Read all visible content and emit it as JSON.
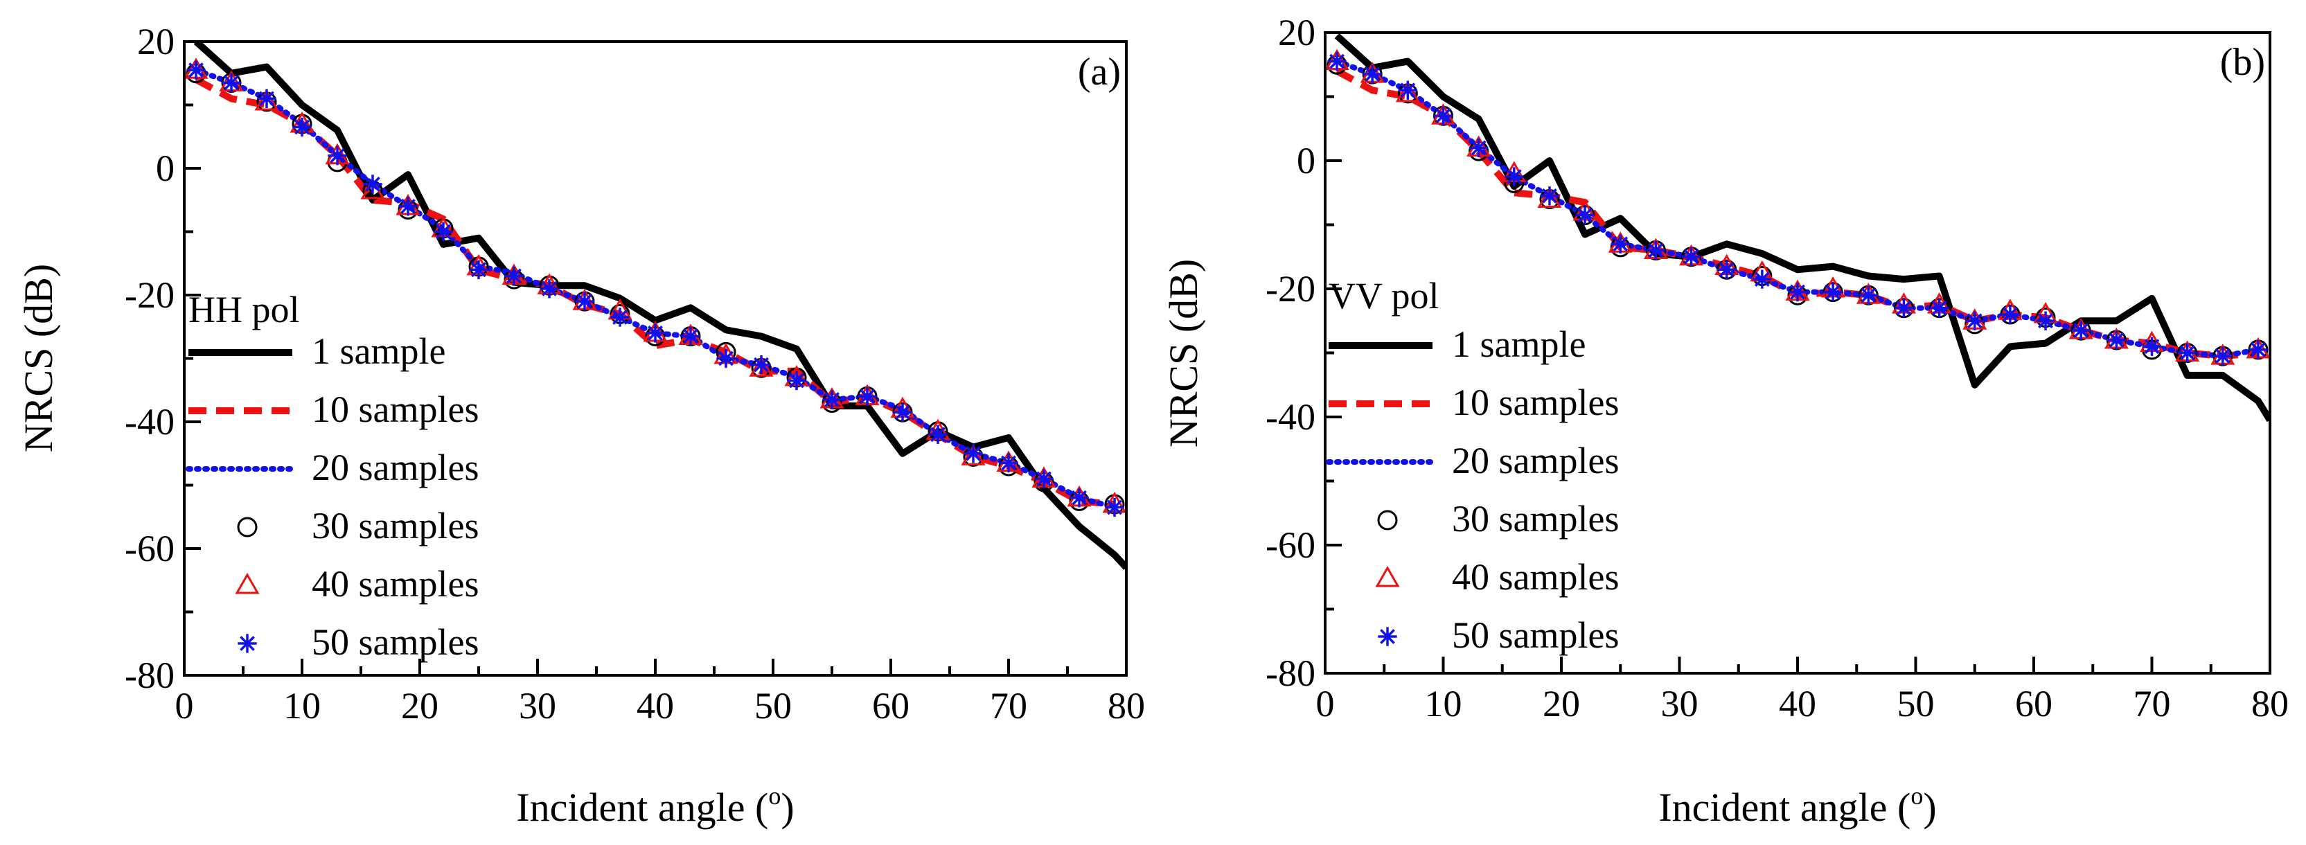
{
  "chart_data": [
    {
      "type": "line",
      "panel_label": "(a)",
      "polarization_label": "HH pol",
      "xlabel": "Incident angle (",
      "xlabel_sup": "o",
      "xlabel_close": ")",
      "ylabel": "NRCS (dB)",
      "xlim": [
        0,
        80
      ],
      "ylim": [
        -80,
        20
      ],
      "xticks": [
        0,
        10,
        20,
        30,
        40,
        50,
        60,
        70,
        80
      ],
      "yticks": [
        20,
        0,
        -20,
        -40,
        -60,
        -80
      ],
      "legend_position": "left-middle",
      "series": [
        {
          "name": "1 sample",
          "style": "solid",
          "color": "#000000",
          "x": [
            1,
            4,
            7,
            10,
            13,
            16,
            19,
            22,
            25,
            28,
            31,
            34,
            37,
            40,
            43,
            46,
            49,
            52,
            55,
            58,
            61,
            64,
            67,
            70,
            73,
            76,
            79,
            80
          ],
          "y": [
            20,
            15,
            16,
            10,
            6,
            -5,
            -1,
            -12,
            -11,
            -18,
            -18.5,
            -18.5,
            -20.5,
            -24,
            -22,
            -25.5,
            -26.5,
            -28.5,
            -37.5,
            -37.5,
            -45,
            -41.5,
            -44,
            -42.5,
            -50.5,
            -56.5,
            -61,
            -63
          ]
        },
        {
          "name": "10 samples",
          "style": "dashed",
          "color": "#ee1111",
          "x": [
            1,
            4,
            7,
            10,
            13,
            16,
            19,
            22,
            25,
            28,
            31,
            34,
            37,
            40,
            43,
            46,
            49,
            52,
            55,
            58,
            61,
            64,
            67,
            70,
            73,
            76,
            79
          ],
          "y": [
            14,
            11,
            10,
            7,
            2,
            -5,
            -5.5,
            -8,
            -16,
            -17.5,
            -18.5,
            -21.5,
            -23,
            -28,
            -27,
            -29,
            -32,
            -32,
            -37,
            -36,
            -38.5,
            -42,
            -45.5,
            -47,
            -49.5,
            -52.5,
            -53
          ]
        },
        {
          "name": "20 samples",
          "style": "dotted",
          "color": "#1111ee",
          "x": [
            1,
            4,
            7,
            10,
            13,
            16,
            19,
            22,
            25,
            28,
            31,
            34,
            37,
            40,
            43,
            46,
            49,
            52,
            55,
            58,
            61,
            64,
            67,
            70,
            73,
            76,
            79
          ],
          "y": [
            15.5,
            13.5,
            11,
            7,
            2,
            -2.5,
            -6,
            -9.5,
            -15.5,
            -16.5,
            -19,
            -21,
            -23.5,
            -26,
            -26.5,
            -30,
            -31,
            -33,
            -36.5,
            -36,
            -38,
            -42,
            -45,
            -46.5,
            -49,
            -52,
            -53.5
          ]
        },
        {
          "name": "30 samples",
          "style": "marker",
          "marker": "circle",
          "color": "#000000",
          "x": [
            1,
            4,
            7,
            10,
            13,
            16,
            19,
            22,
            25,
            28,
            31,
            34,
            37,
            40,
            43,
            46,
            49,
            52,
            55,
            58,
            61,
            64,
            67,
            70,
            73,
            76,
            79
          ],
          "y": [
            15,
            13.5,
            10.5,
            7,
            1,
            -3.5,
            -6.5,
            -9.5,
            -15.5,
            -17.5,
            -18.5,
            -21,
            -23,
            -26.5,
            -26.5,
            -29,
            -31.5,
            -33,
            -37,
            -36,
            -38.5,
            -41.5,
            -45.5,
            -47,
            -49.5,
            -52.5,
            -53
          ]
        },
        {
          "name": "40 samples",
          "style": "marker",
          "marker": "triangle",
          "color": "#ee1111",
          "x": [
            1,
            4,
            7,
            10,
            13,
            16,
            19,
            22,
            25,
            28,
            31,
            34,
            37,
            40,
            43,
            46,
            49,
            52,
            55,
            58,
            61,
            64,
            67,
            70,
            73,
            76,
            79
          ],
          "y": [
            15.5,
            13.5,
            10.5,
            7,
            2,
            -3.5,
            -6,
            -9.5,
            -15.5,
            -17,
            -18.5,
            -21,
            -22.5,
            -26,
            -26.5,
            -29.5,
            -31.5,
            -33,
            -36.5,
            -36,
            -38,
            -41.5,
            -45.5,
            -46.5,
            -49,
            -52,
            -53
          ]
        },
        {
          "name": "50 samples",
          "style": "marker",
          "marker": "asterisk",
          "color": "#1111ee",
          "x": [
            1,
            4,
            7,
            10,
            13,
            16,
            19,
            22,
            25,
            28,
            31,
            34,
            37,
            40,
            43,
            46,
            49,
            52,
            55,
            58,
            61,
            64,
            67,
            70,
            73,
            76,
            79
          ],
          "y": [
            15.5,
            13.5,
            11,
            6.5,
            2,
            -2.5,
            -6,
            -10,
            -16,
            -17,
            -19,
            -21,
            -23.5,
            -26,
            -26.5,
            -30,
            -31,
            -33.5,
            -36.5,
            -36,
            -38.5,
            -42,
            -45,
            -46.5,
            -49,
            -52,
            -53.5
          ]
        }
      ]
    },
    {
      "type": "line",
      "panel_label": "(b)",
      "polarization_label": "VV pol",
      "xlabel": "Incident angle (",
      "xlabel_sup": "o",
      "xlabel_close": ")",
      "ylabel": "NRCS (dB)",
      "xlim": [
        0,
        80
      ],
      "ylim": [
        -80,
        20
      ],
      "xticks": [
        0,
        10,
        20,
        30,
        40,
        50,
        60,
        70,
        80
      ],
      "yticks": [
        20,
        0,
        -20,
        -40,
        -60,
        -80
      ],
      "legend_position": "left-middle",
      "series": [
        {
          "name": "1 sample",
          "style": "solid",
          "color": "#000000",
          "x": [
            1,
            4,
            7,
            10,
            13,
            16,
            19,
            22,
            25,
            28,
            31,
            34,
            37,
            40,
            43,
            46,
            49,
            52,
            55,
            58,
            61,
            64,
            67,
            70,
            73,
            76,
            79,
            80
          ],
          "y": [
            19.5,
            14.5,
            15.5,
            10,
            6.5,
            -4,
            0,
            -11.5,
            -9,
            -14.5,
            -15,
            -13,
            -14.5,
            -17,
            -16.5,
            -18,
            -18.5,
            -18,
            -35,
            -29,
            -28.5,
            -25,
            -25,
            -21.5,
            -33.5,
            -33.5,
            -37.5,
            -40.5
          ]
        },
        {
          "name": "10 samples",
          "style": "dashed",
          "color": "#ee1111",
          "x": [
            1,
            4,
            7,
            10,
            13,
            16,
            19,
            22,
            25,
            28,
            31,
            34,
            37,
            40,
            43,
            46,
            49,
            52,
            55,
            58,
            61,
            64,
            67,
            70,
            73,
            76,
            79
          ],
          "y": [
            14,
            11,
            10,
            7,
            1.5,
            -5,
            -5.5,
            -6.5,
            -13.5,
            -14,
            -15,
            -16.5,
            -18,
            -21,
            -20.5,
            -21,
            -23,
            -22.5,
            -25,
            -24,
            -24.5,
            -26.5,
            -28,
            -28.5,
            -30,
            -30.5,
            -30
          ]
        },
        {
          "name": "20 samples",
          "style": "dotted",
          "color": "#1111ee",
          "x": [
            1,
            4,
            7,
            10,
            13,
            16,
            19,
            22,
            25,
            28,
            31,
            34,
            37,
            40,
            43,
            46,
            49,
            52,
            55,
            58,
            61,
            64,
            67,
            70,
            73,
            76,
            79
          ],
          "y": [
            15.5,
            13.5,
            11,
            7,
            2,
            -2.5,
            -5.5,
            -8.5,
            -13,
            -14,
            -15,
            -17,
            -18.5,
            -20.5,
            -20.5,
            -21,
            -23,
            -23,
            -25,
            -24,
            -25,
            -26.5,
            -28,
            -29,
            -30,
            -30.5,
            -29.5
          ]
        },
        {
          "name": "30 samples",
          "style": "marker",
          "marker": "circle",
          "color": "#000000",
          "x": [
            1,
            4,
            7,
            10,
            13,
            16,
            19,
            22,
            25,
            28,
            31,
            34,
            37,
            40,
            43,
            46,
            49,
            52,
            55,
            58,
            61,
            64,
            67,
            70,
            73,
            76,
            79
          ],
          "y": [
            15,
            13.5,
            10.5,
            7,
            1.5,
            -3.5,
            -6,
            -8.5,
            -13.5,
            -14,
            -15,
            -17,
            -18,
            -21,
            -20.5,
            -21,
            -23,
            -23,
            -25.5,
            -24,
            -24.5,
            -26.5,
            -28,
            -29.5,
            -30,
            -30.5,
            -29.5
          ]
        },
        {
          "name": "40 samples",
          "style": "marker",
          "marker": "triangle",
          "color": "#ee1111",
          "x": [
            1,
            4,
            7,
            10,
            13,
            16,
            19,
            22,
            25,
            28,
            31,
            34,
            37,
            40,
            43,
            46,
            49,
            52,
            55,
            58,
            61,
            64,
            67,
            70,
            73,
            76,
            79
          ],
          "y": [
            15.5,
            13.5,
            10.5,
            7,
            2,
            -2,
            -6,
            -8,
            -13,
            -14,
            -15,
            -16.5,
            -17.5,
            -20.5,
            -20,
            -21,
            -22.5,
            -22.5,
            -25,
            -23.5,
            -24,
            -26.5,
            -28,
            -28.5,
            -30,
            -30.5,
            -29.5
          ]
        },
        {
          "name": "50 samples",
          "style": "marker",
          "marker": "asterisk",
          "color": "#1111ee",
          "x": [
            1,
            4,
            7,
            10,
            13,
            16,
            19,
            22,
            25,
            28,
            31,
            34,
            37,
            40,
            43,
            46,
            49,
            52,
            55,
            58,
            61,
            64,
            67,
            70,
            73,
            76,
            79
          ],
          "y": [
            15.5,
            13.5,
            11,
            7,
            2,
            -2.5,
            -5.5,
            -8.5,
            -13,
            -14,
            -15,
            -17,
            -18.5,
            -20.5,
            -20.5,
            -21,
            -23,
            -23,
            -25,
            -24,
            -25,
            -26.5,
            -28,
            -29,
            -30,
            -30.5,
            -29.5
          ]
        }
      ]
    }
  ]
}
